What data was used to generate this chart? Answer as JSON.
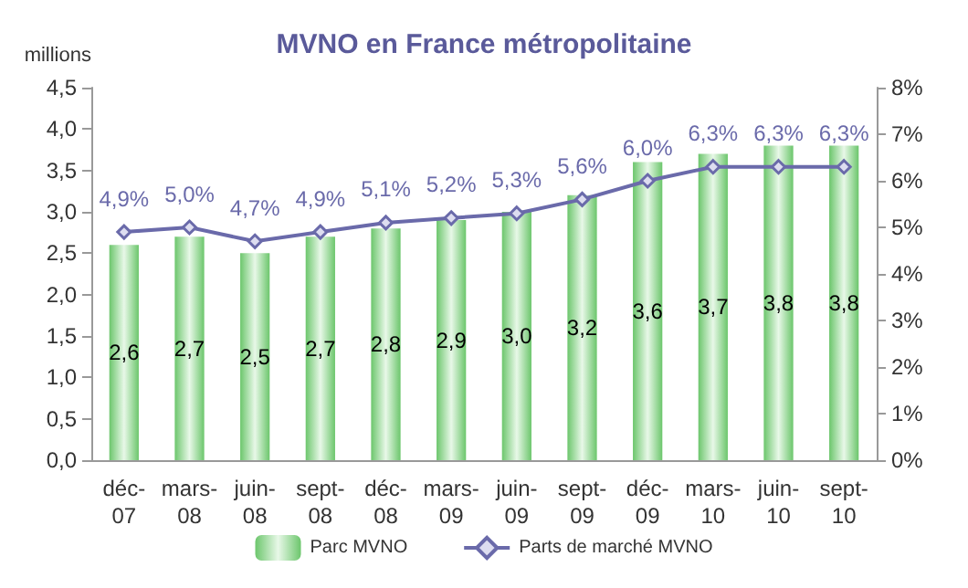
{
  "chart_data": {
    "type": "bar",
    "title": "MVNO en France métropolitaine",
    "ylabel": "millions",
    "categories": [
      "déc-07",
      "mars-08",
      "juin-08",
      "sept-08",
      "déc-08",
      "mars-09",
      "juin-09",
      "sept-09",
      "déc-09",
      "mars-10",
      "juin-10",
      "sept-10"
    ],
    "series": [
      {
        "name": "Parc MVNO",
        "color": "#6cc66c",
        "values": [
          2.6,
          2.7,
          2.5,
          2.7,
          2.8,
          2.9,
          3.0,
          3.2,
          3.6,
          3.7,
          3.8,
          3.8
        ],
        "value_labels": [
          "2,6",
          "2,7",
          "2,5",
          "2,7",
          "2,8",
          "2,9",
          "3,0",
          "3,2",
          "3,6",
          "3,7",
          "3,8",
          "3,8"
        ]
      },
      {
        "name": "Parts de marché MVNO",
        "type": "line",
        "axis": "y2",
        "color": "#6a6aaa",
        "marker": "diamond",
        "values": [
          4.9,
          5.0,
          4.7,
          4.9,
          5.1,
          5.2,
          5.3,
          5.6,
          6.0,
          6.3,
          6.3,
          6.3
        ],
        "value_labels": [
          "4,9%",
          "5,0%",
          "4,7%",
          "4,9%",
          "5,1%",
          "5,2%",
          "5,3%",
          "5,6%",
          "6,0%",
          "6,3%",
          "6,3%",
          "6,3%"
        ]
      }
    ],
    "ylim": [
      0,
      4.5
    ],
    "yticks": [
      {
        "value": 0,
        "label": "0,0"
      },
      {
        "value": 0.5,
        "label": "0,5"
      },
      {
        "value": 1,
        "label": "1,0"
      },
      {
        "value": 1.5,
        "label": "1,5"
      },
      {
        "value": 2,
        "label": "2,0"
      },
      {
        "value": 2.5,
        "label": "2,5"
      },
      {
        "value": 3,
        "label": "3,0"
      },
      {
        "value": 3.5,
        "label": "3,5"
      },
      {
        "value": 4,
        "label": "4,0"
      },
      {
        "value": 4.5,
        "label": "4,5"
      }
    ],
    "y2lim": [
      0,
      8
    ],
    "y2ticks": [
      {
        "value": 0,
        "label": "0%"
      },
      {
        "value": 1,
        "label": "1%"
      },
      {
        "value": 2,
        "label": "2%"
      },
      {
        "value": 3,
        "label": "3%"
      },
      {
        "value": 4,
        "label": "4%"
      },
      {
        "value": 5,
        "label": "5%"
      },
      {
        "value": 6,
        "label": "6%"
      },
      {
        "value": 7,
        "label": "7%"
      },
      {
        "value": 8,
        "label": "8%"
      }
    ],
    "legend": "bottom",
    "grid": false
  }
}
